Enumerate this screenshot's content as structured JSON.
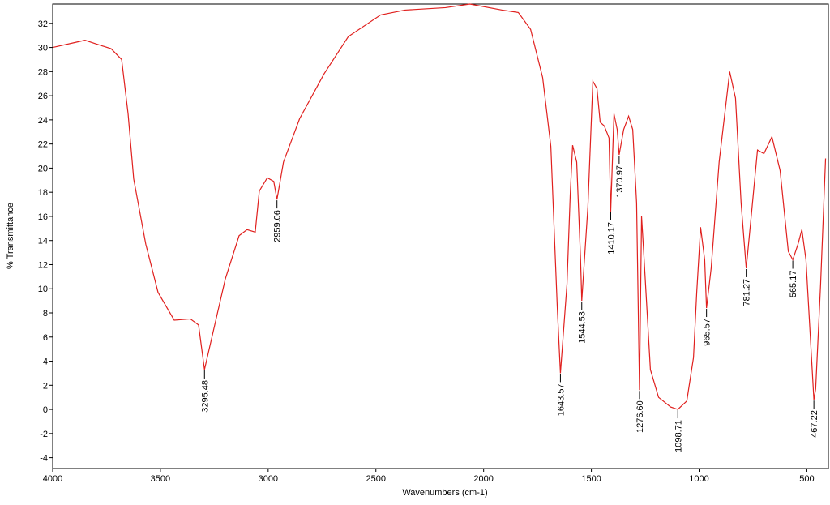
{
  "chart_data": {
    "type": "line",
    "x_label": "Wavenumbers (cm-1)",
    "y_label": "% Transmittance",
    "xlim": [
      4000,
      400
    ],
    "ylim": [
      -4.9,
      33.6
    ],
    "xticks": [
      4000,
      3500,
      3000,
      2500,
      2000,
      1500,
      1000,
      500
    ],
    "yticks": [
      -4,
      -2,
      0,
      2,
      4,
      6,
      8,
      10,
      12,
      14,
      16,
      18,
      20,
      22,
      24,
      26,
      28,
      30,
      32
    ],
    "series": [
      {
        "color": "#e0201e",
        "x": [
          4000,
          3900,
          3850,
          3800,
          3729,
          3680,
          3650,
          3624,
          3568,
          3511,
          3436,
          3361,
          3323,
          3295.48,
          3248,
          3199,
          3135,
          3098,
          3060,
          3041,
          3004,
          2974,
          2959.06,
          2929,
          2854,
          2741,
          2628,
          2478,
          2365,
          2177,
          2064,
          1914,
          1839,
          1782,
          1726,
          1688,
          1658,
          1643.57,
          1613,
          1598,
          1587,
          1568,
          1550,
          1544.53,
          1516,
          1493,
          1474,
          1459,
          1440,
          1418,
          1410.17,
          1395,
          1380,
          1370.97,
          1350,
          1327,
          1308,
          1290,
          1276.6,
          1267,
          1256,
          1226,
          1188,
          1132,
          1098.71,
          1057,
          1026,
          1011,
          993,
          974,
          965.57,
          944,
          907,
          858,
          831,
          805,
          781.27,
          756,
          729,
          699,
          662,
          624,
          586,
          565.17,
          541,
          523,
          504,
          467.22,
          459,
          436,
          413
        ],
        "values": [
          30.0,
          30.4,
          30.6,
          30.3,
          29.9,
          29.0,
          24.5,
          19.1,
          13.7,
          9.7,
          7.4,
          7.5,
          7.0,
          3.3,
          7.0,
          10.8,
          14.4,
          14.9,
          14.7,
          18.1,
          19.2,
          18.9,
          17.4,
          20.5,
          24.1,
          27.8,
          30.9,
          32.7,
          33.1,
          33.3,
          33.6,
          33.1,
          32.9,
          31.5,
          27.5,
          21.8,
          8.4,
          3.0,
          10.4,
          17.8,
          21.9,
          20.5,
          12.4,
          9.0,
          16.8,
          27.2,
          26.6,
          23.8,
          23.5,
          22.5,
          16.4,
          24.5,
          23.2,
          21.1,
          23.2,
          24.3,
          23.2,
          17.1,
          1.6,
          16.0,
          12.7,
          3.3,
          1.0,
          0.2,
          0.0,
          0.7,
          4.3,
          9.7,
          15.1,
          12.4,
          8.4,
          11.7,
          20.5,
          28.0,
          25.8,
          17.1,
          11.7,
          16.4,
          21.5,
          21.2,
          22.6,
          19.8,
          13.1,
          12.4,
          13.7,
          14.9,
          12.4,
          0.8,
          1.7,
          10.4,
          20.8
        ]
      }
    ],
    "peaks": [
      {
        "value": 3295.48,
        "label": "3295.48"
      },
      {
        "value": 2959.06,
        "label": "2959.06"
      },
      {
        "value": 1643.57,
        "label": "1643.57"
      },
      {
        "value": 1544.53,
        "label": "1544.53"
      },
      {
        "value": 1410.17,
        "label": "1410.17"
      },
      {
        "value": 1370.97,
        "label": "1370.97"
      },
      {
        "value": 1276.6,
        "label": "1276.60"
      },
      {
        "value": 1098.71,
        "label": "1098.71"
      },
      {
        "value": 965.57,
        "label": "965.57"
      },
      {
        "value": 781.27,
        "label": "781.27"
      },
      {
        "value": 565.17,
        "label": "565.17"
      },
      {
        "value": 467.22,
        "label": "467.22"
      }
    ]
  }
}
